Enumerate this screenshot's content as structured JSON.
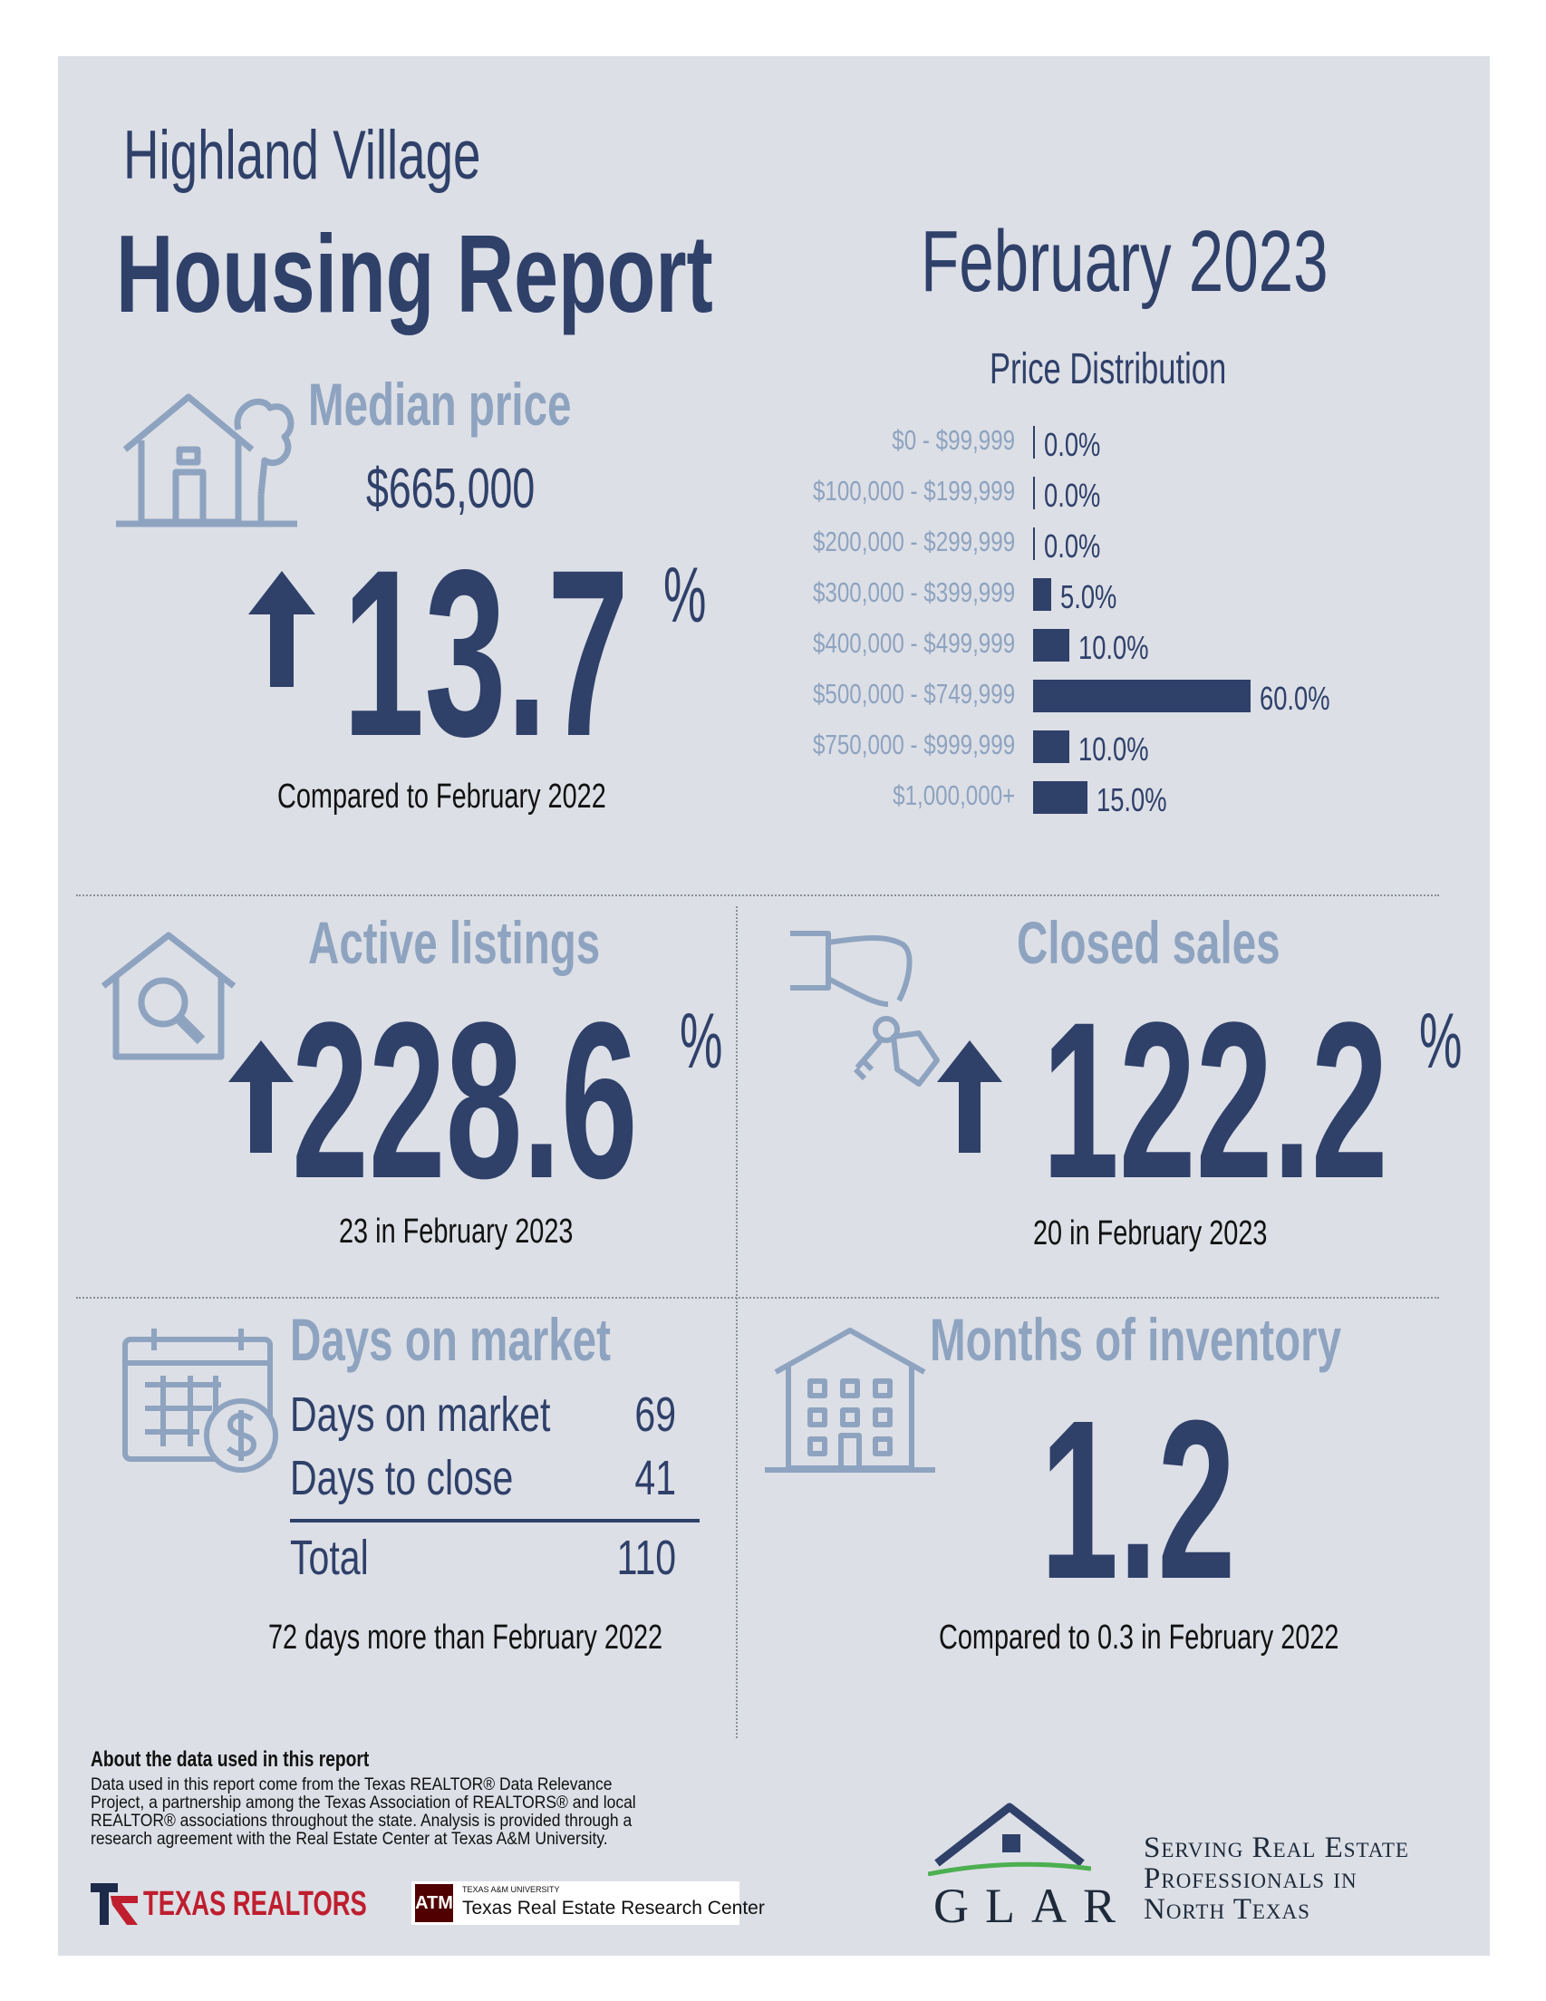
{
  "header": {
    "city": "Highland Village",
    "title": "Housing Report",
    "period": "February 2023"
  },
  "median_price": {
    "heading": "Median price",
    "value": "$665,000",
    "change": "13.7",
    "unit": "%",
    "direction": "up",
    "comparison": "Compared to February 2022"
  },
  "chart_data": {
    "type": "bar",
    "title": "Price Distribution",
    "orientation": "horizontal",
    "categories": [
      "$0 - $99,999",
      "$100,000 - $199,999",
      "$200,000 - $299,999",
      "$300,000 - $399,999",
      "$400,000 - $499,999",
      "$500,000 - $749,999",
      "$750,000 - $999,999",
      "$1,000,000+"
    ],
    "values": [
      0.0,
      0.0,
      0.0,
      5.0,
      10.0,
      60.0,
      10.0,
      15.0
    ],
    "value_labels": [
      "0.0%",
      "0.0%",
      "0.0%",
      "5.0%",
      "10.0%",
      "60.0%",
      "10.0%",
      "15.0%"
    ]
  },
  "active_listings": {
    "heading": "Active listings",
    "change": "228.6",
    "unit": "%",
    "direction": "up",
    "detail": "23 in February 2023"
  },
  "closed_sales": {
    "heading": "Closed sales",
    "change": "122.2",
    "unit": "%",
    "direction": "up",
    "detail": "20 in February 2023"
  },
  "days_on_market": {
    "heading": "Days on market",
    "rows": [
      {
        "label": "Days on market",
        "value": "69"
      },
      {
        "label": "Days to close",
        "value": "41"
      }
    ],
    "total_label": "Total",
    "total_value": "110",
    "comparison": "72 days more than February 2022"
  },
  "months_inventory": {
    "heading": "Months of inventory",
    "value": "1.2",
    "comparison": "Compared to 0.3 in February 2022"
  },
  "footer": {
    "about_heading": "About the data used in this report",
    "about_text": "Data used in this report come from the Texas REALTOR® Data Relevance Project, a partnership among the Texas Association of REALTORS® and local REALTOR® associations throughout the state. Analysis is provided through a research agreement with the Real Estate Center at Texas A&M University.",
    "texas_realtors": "TEXAS REALTORS",
    "tamu_small": "TEXAS A&M UNIVERSITY",
    "tamu_center": "Texas Real Estate Research Center",
    "glar_logo": "GLAR",
    "glar_tagline": [
      "Serving Real Estate",
      "Professionals in",
      "North Texas"
    ]
  },
  "colors": {
    "navy": "#2f4069",
    "light": "#8ea3bf",
    "panel": "#dcdfe6",
    "texas_red": "#bf1e2e",
    "tamu_maroon": "#500000"
  }
}
